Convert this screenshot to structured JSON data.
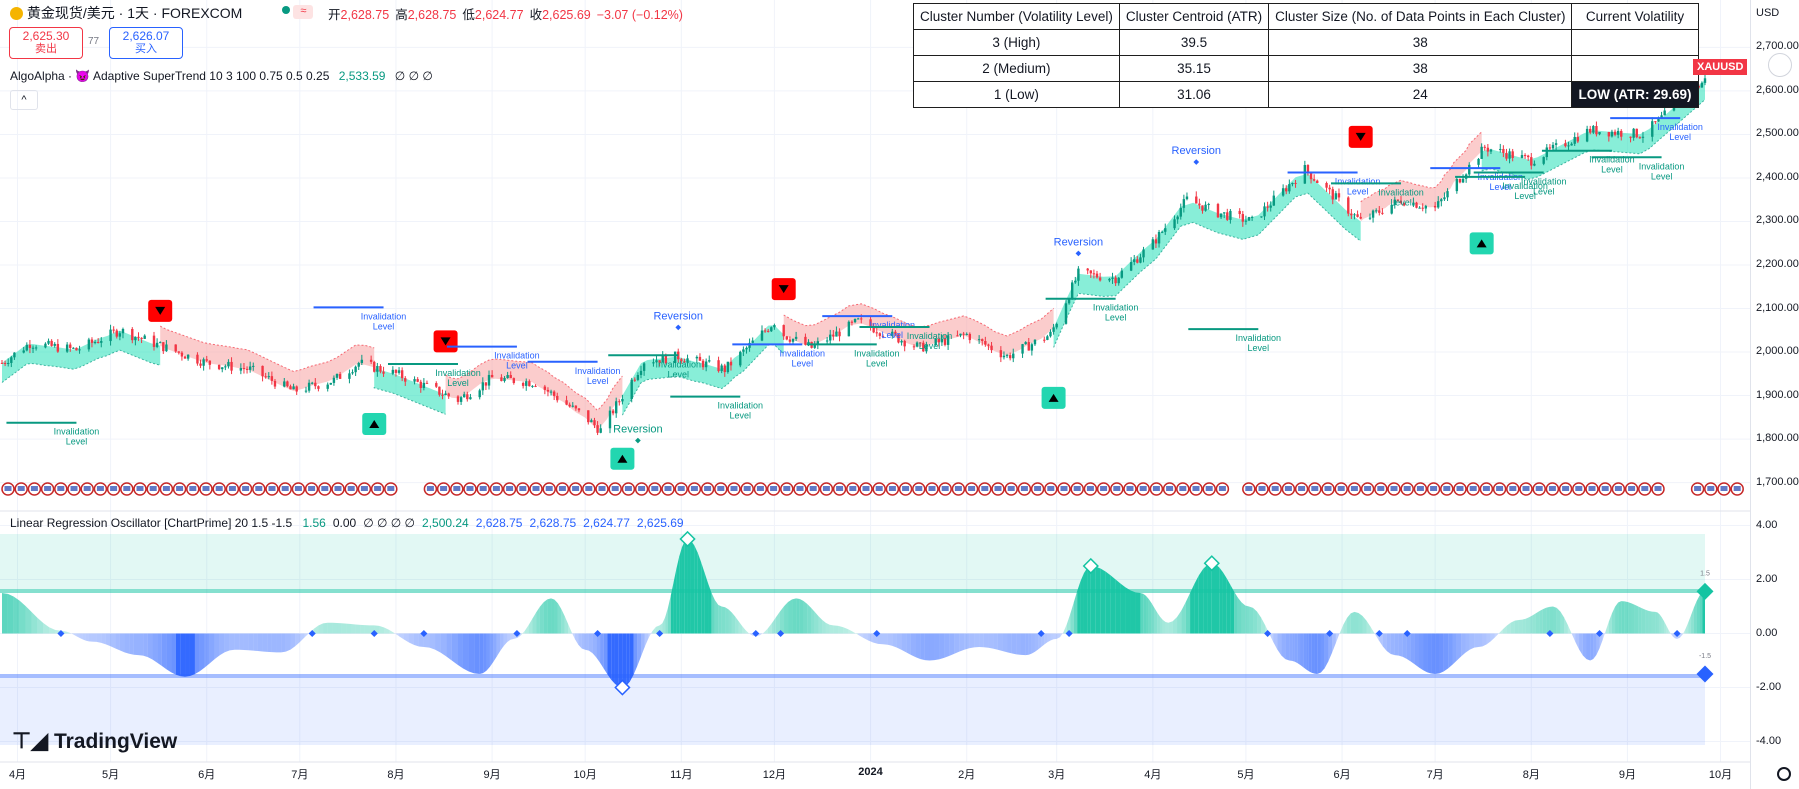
{
  "header": {
    "symbol_title": "黄金现货/美元 · 1天 · FOREXCOM",
    "ohlc": [
      {
        "label": "开",
        "value": "2,628.75"
      },
      {
        "label": "高",
        "value": "2,628.75"
      },
      {
        "label": "低",
        "value": "2,624.77"
      },
      {
        "label": "收",
        "value": "2,625.69"
      }
    ],
    "change": "−3.07 (−0.12%)",
    "sell_price": "2,625.30",
    "sell_label": "卖出",
    "spread": "77",
    "buy_price": "2,626.07",
    "buy_label": "买入"
  },
  "indicators": {
    "supertrend_legend": "AlgoAlpha · 😈 Adaptive SuperTrend 10 3 100 0.75 0.5 0.25",
    "supertrend_value": "2,533.59",
    "supertrend_zeros": "∅ ∅ ∅",
    "oscillator_legend": "Linear Regression Oscillator [ChartPrime] 20 1.5 -1.5",
    "osc_values": [
      {
        "text": "1.56",
        "color": "#089981"
      },
      {
        "text": "0.00",
        "color": "#131722"
      },
      {
        "text": "∅ ∅ ∅ ∅",
        "color": "#131722"
      },
      {
        "text": "2,500.24",
        "color": "#089981"
      },
      {
        "text": "2,628.75",
        "color": "#2962ff"
      },
      {
        "text": "2,628.75",
        "color": "#2962ff"
      },
      {
        "text": "2,624.77",
        "color": "#2962ff"
      },
      {
        "text": "2,625.69",
        "color": "#2962ff"
      }
    ],
    "osc_upper_marker": "1.5",
    "osc_lower_marker": "-1.5"
  },
  "cluster_table": {
    "headers": [
      "Cluster Number (Volatility Level)",
      "Cluster Centroid (ATR)",
      "Cluster Size (No. of Data Points in Each Cluster)",
      "Current Volatility"
    ],
    "rows": [
      [
        "3 (High)",
        "39.5",
        "38",
        ""
      ],
      [
        "2 (Medium)",
        "35.15",
        "38",
        ""
      ],
      [
        "1 (Low)",
        "31.06",
        "24",
        "LOW (ATR: 29.69)"
      ]
    ]
  },
  "price_axis": {
    "currency": "USD",
    "ticks": [
      "2,700.00",
      "2,600.00",
      "2,500.00",
      "2,400.00",
      "2,300.00",
      "2,200.00",
      "2,100.00",
      "2,000.00",
      "1,900.00",
      "1,800.00",
      "1,700.00"
    ],
    "symbol_badge": "XAUUSD"
  },
  "osc_axis": {
    "ticks": [
      "4.00",
      "2.00",
      "0.00",
      "-2.00",
      "-4.00"
    ]
  },
  "time_axis": {
    "ticks": [
      "4月",
      "5月",
      "6月",
      "7月",
      "8月",
      "9月",
      "10月",
      "11月",
      "12月",
      "2024",
      "2月",
      "3月",
      "4月",
      "5月",
      "6月",
      "7月",
      "8月",
      "9月",
      "10月"
    ]
  },
  "annotations": {
    "invalidation": "Invalidation",
    "level": "Level",
    "reversion": "Reversion"
  },
  "brand": "TradingView",
  "colors": {
    "bull": "#089981",
    "bear": "#f23645",
    "bull_fill": "#26e0b8",
    "bear_fill": "#f7a3a3",
    "osc_bull": "#14c4a2",
    "osc_bear": "#2962ff",
    "signal_red": "#ff0000",
    "signal_teal": "#22d6b0"
  },
  "chart_data": {
    "type": "candlestick",
    "symbol": "XAUUSD",
    "x_start": "2023-03-27",
    "x_end": "2024-09-26",
    "x_ticks": [
      "2023-04",
      "2023-05",
      "2023-06",
      "2023-07",
      "2023-08",
      "2023-09",
      "2023-10",
      "2023-11",
      "2023-12",
      "2024-01",
      "2024-02",
      "2024-03",
      "2024-04",
      "2024-05",
      "2024-06",
      "2024-07",
      "2024-08",
      "2024-09",
      "2024-10"
    ],
    "ylim": [
      1660,
      2740
    ],
    "close_path": [
      [
        "2023-03-27",
        1975
      ],
      [
        "2023-04-05",
        2020
      ],
      [
        "2023-04-20",
        2005
      ],
      [
        "2023-05-04",
        2050
      ],
      [
        "2023-05-15",
        2020
      ],
      [
        "2023-06-01",
        1975
      ],
      [
        "2023-06-15",
        1960
      ],
      [
        "2023-06-29",
        1910
      ],
      [
        "2023-07-12",
        1935
      ],
      [
        "2023-07-20",
        1975
      ],
      [
        "2023-08-01",
        1950
      ],
      [
        "2023-08-21",
        1890
      ],
      [
        "2023-09-01",
        1940
      ],
      [
        "2023-09-15",
        1930
      ],
      [
        "2023-10-01",
        1850
      ],
      [
        "2023-10-06",
        1820
      ],
      [
        "2023-10-20",
        1980
      ],
      [
        "2023-10-31",
        1990
      ],
      [
        "2023-11-15",
        1960
      ],
      [
        "2023-12-01",
        2070
      ],
      [
        "2023-12-04",
        2040
      ],
      [
        "2023-12-13",
        2010
      ],
      [
        "2023-12-28",
        2070
      ],
      [
        "2024-01-17",
        2010
      ],
      [
        "2024-02-01",
        2040
      ],
      [
        "2024-02-14",
        1990
      ],
      [
        "2024-02-28",
        2040
      ],
      [
        "2024-03-08",
        2180
      ],
      [
        "2024-03-20",
        2170
      ],
      [
        "2024-04-01",
        2250
      ],
      [
        "2024-04-12",
        2350
      ],
      [
        "2024-04-22",
        2320
      ],
      [
        "2024-05-03",
        2300
      ],
      [
        "2024-05-20",
        2420
      ],
      [
        "2024-06-07",
        2300
      ],
      [
        "2024-06-20",
        2350
      ],
      [
        "2024-07-01",
        2330
      ],
      [
        "2024-07-17",
        2470
      ],
      [
        "2024-08-01",
        2440
      ],
      [
        "2024-08-20",
        2510
      ],
      [
        "2024-09-06",
        2500
      ],
      [
        "2024-09-26",
        2625
      ]
    ],
    "supertrend_segments": [
      {
        "from": "2023-03-27",
        "to": "2023-05-17",
        "side": "bull"
      },
      {
        "from": "2023-05-17",
        "to": "2023-07-25",
        "side": "bear"
      },
      {
        "from": "2023-07-25",
        "to": "2023-08-17",
        "side": "bull"
      },
      {
        "from": "2023-08-17",
        "to": "2023-10-13",
        "side": "bear"
      },
      {
        "from": "2023-10-13",
        "to": "2023-12-04",
        "side": "bull"
      },
      {
        "from": "2023-12-04",
        "to": "2024-02-29",
        "side": "bear"
      },
      {
        "from": "2024-02-29",
        "to": "2024-06-07",
        "side": "bull"
      },
      {
        "from": "2024-06-07",
        "to": "2024-07-16",
        "side": "bear"
      },
      {
        "from": "2024-07-16",
        "to": "2024-09-26",
        "side": "bull"
      }
    ],
    "sell_signals": [
      {
        "date": "2023-05-17",
        "price": 2060
      },
      {
        "date": "2023-08-17",
        "price": 1990
      },
      {
        "date": "2023-12-04",
        "price": 2110
      },
      {
        "date": "2024-06-07",
        "price": 2460
      }
    ],
    "buy_signals": [
      {
        "date": "2023-07-25",
        "price": 1860
      },
      {
        "date": "2023-10-13",
        "price": 1780
      },
      {
        "date": "2024-02-29",
        "price": 1920
      },
      {
        "date": "2024-07-16",
        "price": 2275
      }
    ],
    "reversion_labels": [
      {
        "date": "2023-10-18",
        "price": 1815,
        "color": "#089981"
      },
      {
        "date": "2023-10-31",
        "price": 2075,
        "color": "#2962ff"
      },
      {
        "date": "2024-03-08",
        "price": 2245,
        "color": "#2962ff"
      },
      {
        "date": "2024-04-15",
        "price": 2455,
        "color": "#2962ff"
      }
    ],
    "invalidation_labels": [
      {
        "date": "2023-04-20",
        "price": 1810,
        "color": "#089981"
      },
      {
        "date": "2023-07-28",
        "price": 2075,
        "color": "#2962ff"
      },
      {
        "date": "2023-08-21",
        "price": 1945,
        "color": "#089981"
      },
      {
        "date": "2023-09-09",
        "price": 1985,
        "color": "#2962ff"
      },
      {
        "date": "2023-10-05",
        "price": 1950,
        "color": "#2962ff"
      },
      {
        "date": "2023-10-31",
        "price": 1965,
        "color": "#089981"
      },
      {
        "date": "2023-11-20",
        "price": 1870,
        "color": "#089981"
      },
      {
        "date": "2023-12-10",
        "price": 1990,
        "color": "#2962ff"
      },
      {
        "date": "2024-01-03",
        "price": 1990,
        "color": "#089981"
      },
      {
        "date": "2024-01-08",
        "price": 2055,
        "color": "#2962ff"
      },
      {
        "date": "2024-01-20",
        "price": 2030,
        "color": "#089981"
      },
      {
        "date": "2024-03-20",
        "price": 2095,
        "color": "#089981"
      },
      {
        "date": "2024-05-05",
        "price": 2025,
        "color": "#089981"
      },
      {
        "date": "2024-06-06",
        "price": 2385,
        "color": "#2962ff"
      },
      {
        "date": "2024-06-20",
        "price": 2360,
        "color": "#089981"
      },
      {
        "date": "2024-07-22",
        "price": 2395,
        "color": "#2962ff"
      },
      {
        "date": "2024-07-30",
        "price": 2375,
        "color": "#089981"
      },
      {
        "date": "2024-08-05",
        "price": 2385,
        "color": "#089981"
      },
      {
        "date": "2024-08-27",
        "price": 2435,
        "color": "#089981"
      },
      {
        "date": "2024-09-18",
        "price": 2510,
        "color": "#2962ff"
      },
      {
        "date": "2024-09-12",
        "price": 2420,
        "color": "#089981"
      }
    ],
    "oscillator": {
      "ylim": [
        -4.5,
        4.5
      ],
      "upper_threshold": 1.5,
      "lower_threshold": -1.5,
      "last_value": 1.56,
      "points": [
        [
          "2023-03-27",
          1.5
        ],
        [
          "2023-04-15",
          0.1
        ],
        [
          "2023-04-25",
          -0.3
        ],
        [
          "2023-05-10",
          -0.8
        ],
        [
          "2023-05-25",
          -1.6
        ],
        [
          "2023-06-10",
          -0.6
        ],
        [
          "2023-06-25",
          -0.7
        ],
        [
          "2023-07-10",
          0.4
        ],
        [
          "2023-07-25",
          0.3
        ],
        [
          "2023-08-10",
          -0.5
        ],
        [
          "2023-08-28",
          -1.5
        ],
        [
          "2023-09-08",
          -0.2
        ],
        [
          "2023-09-20",
          1.3
        ],
        [
          "2023-10-01",
          -0.6
        ],
        [
          "2023-10-13",
          -2.0
        ],
        [
          "2023-10-25",
          0.3
        ],
        [
          "2023-11-03",
          3.5
        ],
        [
          "2023-11-14",
          1.0
        ],
        [
          "2023-11-25",
          -0.1
        ],
        [
          "2023-12-08",
          1.3
        ],
        [
          "2023-12-20",
          0.3
        ],
        [
          "2024-01-05",
          -0.4
        ],
        [
          "2024-01-20",
          -1.0
        ],
        [
          "2024-02-05",
          -0.5
        ],
        [
          "2024-02-20",
          -0.8
        ],
        [
          "2024-03-01",
          -0.2
        ],
        [
          "2024-03-12",
          2.5
        ],
        [
          "2024-03-28",
          1.5
        ],
        [
          "2024-04-06",
          0.4
        ],
        [
          "2024-04-20",
          2.6
        ],
        [
          "2024-05-02",
          1.0
        ],
        [
          "2024-05-15",
          -1.0
        ],
        [
          "2024-05-24",
          -1.5
        ],
        [
          "2024-06-05",
          0.8
        ],
        [
          "2024-06-18",
          -0.8
        ],
        [
          "2024-07-01",
          -1.5
        ],
        [
          "2024-07-15",
          -0.5
        ],
        [
          "2024-07-28",
          0.5
        ],
        [
          "2024-08-08",
          1.0
        ],
        [
          "2024-08-20",
          -1.0
        ],
        [
          "2024-08-30",
          1.2
        ],
        [
          "2024-09-10",
          0.8
        ],
        [
          "2024-09-17",
          -0.2
        ],
        [
          "2024-09-26",
          1.56
        ]
      ],
      "zero_cross_markers": [
        "2023-04-15",
        "2023-07-05",
        "2023-07-25",
        "2023-08-10",
        "2023-09-09",
        "2023-10-05",
        "2023-10-25",
        "2023-11-25",
        "2023-12-03",
        "2024-01-03",
        "2024-02-25",
        "2024-03-05",
        "2024-05-08",
        "2024-05-28",
        "2024-06-13",
        "2024-06-22",
        "2024-08-07",
        "2024-08-23",
        "2024-09-17"
      ],
      "extreme_markers": [
        {
          "date": "2023-11-03",
          "value": 3.5,
          "side": "bull"
        },
        {
          "date": "2023-10-13",
          "value": -2.0,
          "side": "bear"
        },
        {
          "date": "2024-03-12",
          "value": 2.5,
          "side": "bull"
        },
        {
          "date": "2024-04-20",
          "value": 2.6,
          "side": "bull"
        }
      ]
    }
  }
}
